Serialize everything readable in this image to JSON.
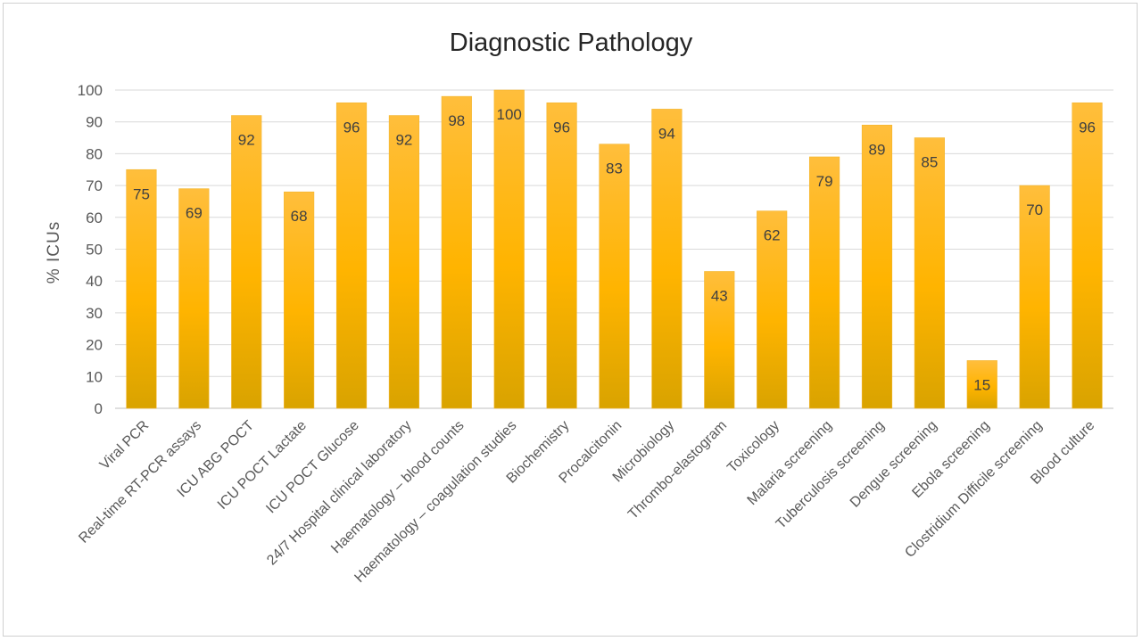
{
  "chart_data": {
    "type": "bar",
    "title": "Diagnostic Pathology",
    "xlabel": "",
    "ylabel": "% ICUs",
    "ylim": [
      0,
      100
    ],
    "ytick_step": 10,
    "grid": true,
    "legend": "none",
    "bar_color_top": "#ffbe3c",
    "bar_color_bottom": "#d9a300",
    "categories": [
      "Viral PCR",
      "Real-time RT-PCR assays",
      "ICU ABG POCT",
      "ICU POCT Lactate",
      "ICU POCT Glucose",
      "24/7 Hospital clinical laboratory",
      "Haematology – blood counts",
      "Haematology – coagulation studies",
      "Biochemistry",
      "Procalcitonin",
      "Microbiology",
      "Thrombo-elastogram",
      "Toxicology",
      "Malaria screening",
      "Tuberculosis screening",
      "Dengue screening",
      "Ebola screening",
      "Clostridium Difficile screening",
      "Blood culture"
    ],
    "values": [
      75,
      69,
      92,
      68,
      96,
      92,
      98,
      100,
      96,
      83,
      94,
      43,
      62,
      79,
      89,
      85,
      15,
      70,
      96
    ]
  }
}
